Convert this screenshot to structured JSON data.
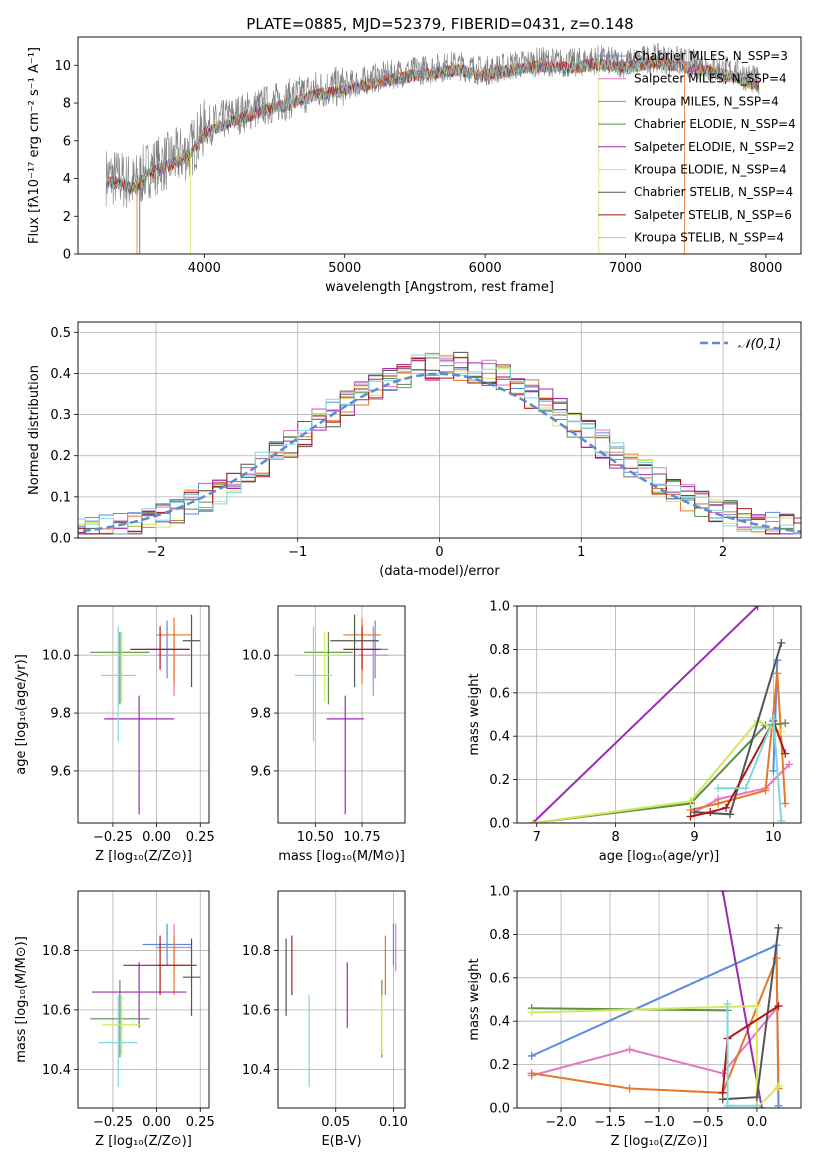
{
  "title": "PLATE=0885, MJD=52379, FIBERID=0431, z=0.148",
  "colors": {
    "chabrier_miles": "#5b8be0",
    "salpeter_miles": "#e377c2",
    "kroupa_miles": "#e6782a",
    "chabrier_elodie": "#5a8f4a",
    "salpeter_elodie": "#9d2ab5",
    "kroupa_elodie": "#d4e65c",
    "chabrier_stelib": "#555555",
    "salpeter_stelib": "#b01818",
    "kroupa_stelib": "#7fd9dc",
    "spectrum": "#808080",
    "normal": "#5b8bd6",
    "grid": "#b0b0b0"
  },
  "chart_data": [
    {
      "id": "spectrum",
      "type": "line",
      "title": "PLATE=0885, MJD=52379, FIBERID=0431, z=0.148",
      "xlabel": "wavelength [Angstrom, rest frame]",
      "ylabel": "Flux [fλ10⁻¹⁷ erg cm⁻² s⁻¹ A⁻¹]",
      "xlim": [
        3100,
        8250
      ],
      "ylim": [
        0,
        11.5
      ],
      "xticks": [
        4000,
        5000,
        6000,
        7000,
        8000
      ],
      "yticks": [
        0,
        2,
        4,
        6,
        8,
        10
      ],
      "grid": false,
      "legend_position": "top-right",
      "legend": [
        "Chabrier MILES, N_SSP=3",
        "Salpeter MILES, N_SSP=4",
        "Kroupa MILES, N_SSP=4",
        "Chabrier ELODIE, N_SSP=4",
        "Salpeter ELODIE, N_SSP=2",
        "Kroupa ELODIE, N_SSP=4",
        "Chabrier STELIB, N_SSP=4",
        "Salpeter STELIB, N_SSP=6",
        "Kroupa STELIB, N_SSP=4"
      ],
      "data_wavelength": [
        3300,
        3400,
        3500,
        3600,
        3700,
        3800,
        3900,
        4000,
        4200,
        4400,
        4600,
        4800,
        5000,
        5200,
        5400,
        5600,
        5800,
        6000,
        6200,
        6400,
        6600,
        6800,
        7000,
        7200,
        7400,
        7600,
        7800,
        7950
      ],
      "data_flux": [
        4.1,
        4.0,
        3.7,
        4.5,
        4.8,
        5.1,
        5.5,
        6.7,
        7.3,
        7.8,
        8.2,
        8.7,
        8.9,
        9.3,
        9.6,
        9.8,
        10.0,
        9.7,
        10.0,
        10.2,
        10.1,
        10.3,
        10.1,
        10.4,
        10.2,
        9.9,
        9.6,
        9.1
      ]
    },
    {
      "id": "residuals",
      "type": "histogram",
      "xlabel": "(data-model)/error",
      "ylabel": "Normed distribution",
      "xlim": [
        -2.55,
        2.55
      ],
      "ylim": [
        0,
        0.525
      ],
      "xticks": [
        -2,
        -1,
        0,
        1,
        2
      ],
      "yticks": [
        0.0,
        0.1,
        0.2,
        0.3,
        0.4,
        0.5
      ],
      "grid": true,
      "bin_width": 0.1,
      "legend_position": "top-right",
      "legend": [
        "𝒩(0,1)"
      ],
      "reference_curve": "standard normal"
    },
    {
      "id": "age_vs_Z",
      "type": "errorbar",
      "xlabel": "Z [log₁₀(Z/Z⊙)]",
      "ylabel": "age [log₁₀(age/yr)]",
      "xlim": [
        -0.45,
        0.3
      ],
      "ylim": [
        9.42,
        10.17
      ],
      "xticks": [
        -0.25,
        0.0,
        0.25
      ],
      "xtick_labels": [
        "−0.25",
        "0.00",
        "0.25"
      ],
      "yticks": [
        9.6,
        9.8,
        10.0
      ],
      "grid": true,
      "points": [
        {
          "model": "chabrier_miles",
          "x": 0.06,
          "y": 10.02,
          "xerr": 0.13,
          "yerr": [
            0.1,
            0.1
          ]
        },
        {
          "model": "salpeter_miles",
          "x": 0.1,
          "y": 10.0,
          "xerr": 0.1,
          "yerr": [
            0.14,
            0.1
          ]
        },
        {
          "model": "kroupa_miles",
          "x": 0.1,
          "y": 10.07,
          "xerr": 0.1,
          "yerr": [
            0.17,
            0.06
          ]
        },
        {
          "model": "chabrier_elodie",
          "x": -0.21,
          "y": 10.01,
          "xerr": 0.17,
          "yerr": [
            0.18,
            0.07
          ]
        },
        {
          "model": "salpeter_elodie",
          "x": -0.1,
          "y": 9.78,
          "xerr": 0.2,
          "yerr": [
            0.33,
            0.08
          ]
        },
        {
          "model": "kroupa_elodie",
          "x": -0.2,
          "y": 10.0,
          "xerr": 0.12,
          "yerr": [
            0.16,
            0.08
          ]
        },
        {
          "model": "chabrier_stelib",
          "x": 0.2,
          "y": 10.05,
          "xerr": 0.05,
          "yerr": [
            0.16,
            0.09
          ]
        },
        {
          "model": "salpeter_stelib",
          "x": 0.02,
          "y": 10.02,
          "xerr": 0.17,
          "yerr": [
            0.07,
            0.08
          ]
        },
        {
          "model": "kroupa_stelib",
          "x": -0.22,
          "y": 9.93,
          "xerr": 0.1,
          "yerr": [
            0.23,
            0.17
          ]
        }
      ]
    },
    {
      "id": "age_vs_mass",
      "type": "errorbar",
      "xlabel": "mass [log₁₀(M/M⊙)]",
      "ylabel": "",
      "xlim": [
        10.3,
        10.98
      ],
      "ylim": [
        9.42,
        10.17
      ],
      "xticks": [
        10.5,
        10.75
      ],
      "yticks": [
        9.6,
        9.8,
        10.0
      ],
      "grid": true,
      "points": [
        {
          "model": "chabrier_miles",
          "x": 10.82,
          "y": 10.02,
          "xerr": 0.07,
          "yerr": [
            0.1,
            0.1
          ]
        },
        {
          "model": "salpeter_miles",
          "x": 10.81,
          "y": 10.0,
          "xerr": 0.08,
          "yerr": [
            0.14,
            0.1
          ]
        },
        {
          "model": "kroupa_miles",
          "x": 10.75,
          "y": 10.07,
          "xerr": 0.1,
          "yerr": [
            0.17,
            0.06
          ]
        },
        {
          "model": "chabrier_elodie",
          "x": 10.57,
          "y": 10.01,
          "xerr": 0.13,
          "yerr": [
            0.18,
            0.07
          ]
        },
        {
          "model": "salpeter_elodie",
          "x": 10.66,
          "y": 9.78,
          "xerr": 0.1,
          "yerr": [
            0.33,
            0.08
          ]
        },
        {
          "model": "kroupa_elodie",
          "x": 10.55,
          "y": 10.0,
          "xerr": 0.1,
          "yerr": [
            0.16,
            0.08
          ]
        },
        {
          "model": "chabrier_stelib",
          "x": 10.71,
          "y": 10.05,
          "xerr": 0.13,
          "yerr": [
            0.16,
            0.09
          ]
        },
        {
          "model": "salpeter_stelib",
          "x": 10.75,
          "y": 10.02,
          "xerr": 0.1,
          "yerr": [
            0.07,
            0.08
          ]
        },
        {
          "model": "kroupa_stelib",
          "x": 10.49,
          "y": 9.93,
          "xerr": 0.1,
          "yerr": [
            0.23,
            0.17
          ]
        }
      ]
    },
    {
      "id": "mass_vs_Z",
      "type": "errorbar",
      "xlabel": "Z [log₁₀(Z/Z⊙)]",
      "ylabel": "mass [log₁₀(M/M⊙)]",
      "xlim": [
        -0.45,
        0.3
      ],
      "ylim": [
        10.27,
        11.0
      ],
      "xticks": [
        -0.25,
        0.0,
        0.25
      ],
      "xtick_labels": [
        "−0.25",
        "0.00",
        "0.25"
      ],
      "yticks": [
        10.4,
        10.6,
        10.8
      ],
      "grid": true,
      "points": [
        {
          "model": "chabrier_miles",
          "x": 0.06,
          "y": 10.82,
          "xerr": 0.14,
          "yerr": [
            0.07,
            0.07
          ]
        },
        {
          "model": "salpeter_miles",
          "x": 0.1,
          "y": 10.81,
          "xerr": 0.1,
          "yerr": [
            0.08,
            0.08
          ]
        },
        {
          "model": "kroupa_miles",
          "x": 0.1,
          "y": 10.75,
          "xerr": 0.1,
          "yerr": [
            0.1,
            0.1
          ]
        },
        {
          "model": "chabrier_elodie",
          "x": -0.21,
          "y": 10.57,
          "xerr": 0.17,
          "yerr": [
            0.13,
            0.13
          ]
        },
        {
          "model": "salpeter_elodie",
          "x": -0.1,
          "y": 10.66,
          "xerr": 0.27,
          "yerr": [
            0.12,
            0.1
          ]
        },
        {
          "model": "kroupa_elodie",
          "x": -0.2,
          "y": 10.55,
          "xerr": 0.11,
          "yerr": [
            0.1,
            0.1
          ]
        },
        {
          "model": "chabrier_stelib",
          "x": 0.2,
          "y": 10.71,
          "xerr": 0.05,
          "yerr": [
            0.13,
            0.13
          ]
        },
        {
          "model": "salpeter_stelib",
          "x": 0.02,
          "y": 10.75,
          "xerr": 0.21,
          "yerr": [
            0.1,
            0.1
          ]
        },
        {
          "model": "kroupa_stelib",
          "x": -0.22,
          "y": 10.49,
          "xerr": 0.11,
          "yerr": [
            0.15,
            0.16
          ]
        }
      ]
    },
    {
      "id": "mass_vs_ebv",
      "type": "errorbar",
      "xlabel": "E(B-V)",
      "ylabel": "",
      "xlim": [
        0.0,
        0.11
      ],
      "ylim": [
        10.27,
        11.0
      ],
      "xticks": [
        0.05,
        0.1
      ],
      "yticks": [
        10.4,
        10.6,
        10.8
      ],
      "grid": true,
      "points": [
        {
          "model": "chabrier_miles",
          "x": 0.1,
          "y": 10.82,
          "xerr": 0,
          "yerr": [
            0.07,
            0.07
          ]
        },
        {
          "model": "salpeter_miles",
          "x": 0.102,
          "y": 10.81,
          "xerr": 0,
          "yerr": [
            0.08,
            0.08
          ]
        },
        {
          "model": "kroupa_miles",
          "x": 0.093,
          "y": 10.75,
          "xerr": 0,
          "yerr": [
            0.1,
            0.1
          ]
        },
        {
          "model": "chabrier_elodie",
          "x": 0.09,
          "y": 10.57,
          "xerr": 0,
          "yerr": [
            0.13,
            0.13
          ]
        },
        {
          "model": "salpeter_elodie",
          "x": 0.06,
          "y": 10.66,
          "xerr": 0,
          "yerr": [
            0.12,
            0.1
          ]
        },
        {
          "model": "kroupa_elodie",
          "x": 0.09,
          "y": 10.55,
          "xerr": 0,
          "yerr": [
            0.1,
            0.1
          ]
        },
        {
          "model": "chabrier_stelib",
          "x": 0.007,
          "y": 10.71,
          "xerr": 0,
          "yerr": [
            0.13,
            0.13
          ]
        },
        {
          "model": "salpeter_stelib",
          "x": 0.012,
          "y": 10.75,
          "xerr": 0,
          "yerr": [
            0.1,
            0.1
          ]
        },
        {
          "model": "kroupa_stelib",
          "x": 0.027,
          "y": 10.49,
          "xerr": 0,
          "yerr": [
            0.15,
            0.16
          ]
        }
      ]
    },
    {
      "id": "weight_vs_age",
      "type": "line",
      "xlabel": "age [log₁₀(age/yr)]",
      "ylabel": "mass weight",
      "xlim": [
        6.75,
        10.35
      ],
      "ylim": [
        0,
        1
      ],
      "xticks": [
        7,
        8,
        9,
        10
      ],
      "yticks": [
        0.0,
        0.2,
        0.4,
        0.6,
        0.8,
        1.0
      ],
      "grid": true,
      "series": [
        {
          "model": "chabrier_miles",
          "x": [
            10.0,
            10.05
          ],
          "y": [
            0.24,
            0.75
          ]
        },
        {
          "model": "salpeter_miles",
          "x": [
            9.0,
            9.3,
            9.9,
            10.2
          ],
          "y": [
            0.05,
            0.11,
            0.16,
            0.27
          ]
        },
        {
          "model": "kroupa_miles",
          "x": [
            8.95,
            9.3,
            9.9,
            10.05,
            10.15
          ],
          "y": [
            0.06,
            0.09,
            0.15,
            0.69,
            0.09
          ]
        },
        {
          "model": "chabrier_elodie",
          "x": [
            6.95,
            8.95,
            9.9,
            10.15
          ],
          "y": [
            0.0,
            0.09,
            0.45,
            0.46
          ]
        },
        {
          "model": "salpeter_elodie",
          "x": [
            6.95,
            9.8
          ],
          "y": [
            0.0,
            1.0
          ]
        },
        {
          "model": "kroupa_elodie",
          "x": [
            6.95,
            8.95,
            9.8,
            10.1
          ],
          "y": [
            0.0,
            0.1,
            0.47,
            0.42
          ]
        },
        {
          "model": "chabrier_stelib",
          "x": [
            9.0,
            9.45,
            10.1
          ],
          "y": [
            0.05,
            0.04,
            0.83
          ]
        },
        {
          "model": "salpeter_stelib",
          "x": [
            8.95,
            9.2,
            9.4,
            10.0,
            10.15
          ],
          "y": [
            0.03,
            0.05,
            0.07,
            0.47,
            0.32
          ]
        },
        {
          "model": "kroupa_stelib",
          "x": [
            9.3,
            9.65,
            10.0,
            10.1
          ],
          "y": [
            0.16,
            0.16,
            0.48,
            0.01
          ]
        }
      ]
    },
    {
      "id": "weight_vs_Z",
      "type": "line",
      "xlabel": "Z [log₁₀(Z/Z⊙)]",
      "ylabel": "mass weight",
      "xlim": [
        -2.45,
        0.45
      ],
      "ylim": [
        0,
        1
      ],
      "xticks": [
        -2.0,
        -1.5,
        -1.0,
        -0.5,
        0.0
      ],
      "xtick_labels": [
        "−2.0",
        "−1.5",
        "−1.0",
        "−0.5",
        "0.0"
      ],
      "yticks": [
        0.0,
        0.2,
        0.4,
        0.6,
        0.8,
        1.0
      ],
      "grid": true,
      "series": [
        {
          "model": "chabrier_miles",
          "x": [
            -2.3,
            0.2,
            0.22
          ],
          "y": [
            0.24,
            0.75,
            0.01
          ]
        },
        {
          "model": "salpeter_miles",
          "x": [
            -2.3,
            -1.3,
            -0.35,
            0.22
          ],
          "y": [
            0.15,
            0.27,
            0.16,
            0.47
          ]
        },
        {
          "model": "kroupa_miles",
          "x": [
            -2.3,
            -1.3,
            -0.35,
            0.2,
            0.22
          ],
          "y": [
            0.16,
            0.09,
            0.07,
            0.69,
            0.09
          ]
        },
        {
          "model": "chabrier_elodie",
          "x": [
            -2.3,
            -0.3
          ],
          "y": [
            0.46,
            0.45
          ]
        },
        {
          "model": "salpeter_elodie",
          "x": [
            -0.35,
            0.05
          ],
          "y": [
            1.0,
            0.0
          ]
        },
        {
          "model": "kroupa_elodie",
          "x": [
            -2.3,
            0.0,
            0.0,
            0.22
          ],
          "y": [
            0.44,
            0.47,
            0.0,
            0.1
          ]
        },
        {
          "model": "chabrier_stelib",
          "x": [
            -0.35,
            0.0,
            0.22
          ],
          "y": [
            0.04,
            0.05,
            0.83
          ]
        },
        {
          "model": "salpeter_stelib",
          "x": [
            -0.35,
            -0.3,
            0.22
          ],
          "y": [
            0.07,
            0.32,
            0.47
          ]
        },
        {
          "model": "kroupa_stelib",
          "x": [
            -0.3,
            -0.3,
            0.0
          ],
          "y": [
            0.48,
            0.01,
            0.01
          ]
        }
      ]
    }
  ]
}
